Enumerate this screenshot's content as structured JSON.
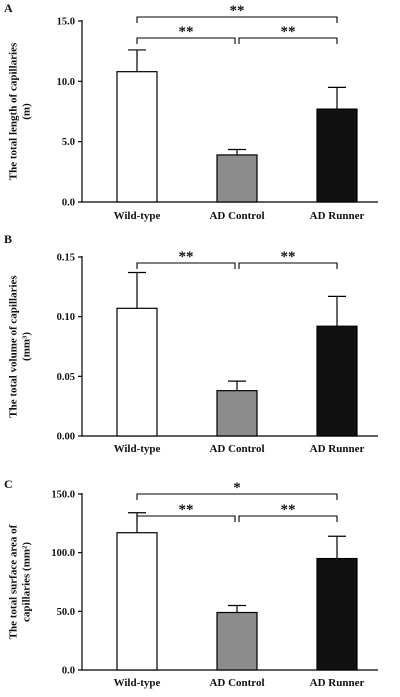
{
  "chart_data": [
    {
      "panel": "A",
      "type": "bar",
      "ylabel": [
        "The total length of capillaries",
        "(m)"
      ],
      "categories": [
        "Wild-type",
        "AD Control",
        "AD Runner"
      ],
      "values": [
        10.8,
        3.9,
        7.7
      ],
      "errors": [
        1.8,
        0.45,
        1.8
      ],
      "bar_colors": [
        "#ffffff",
        "#8c8c8c",
        "#111111"
      ],
      "ylim": [
        0,
        15
      ],
      "yticks": [
        "0.0",
        "5.0",
        "10.0",
        "15.0"
      ],
      "ytick_values": [
        0,
        5,
        10,
        15
      ],
      "significance": [
        {
          "from": 0,
          "to": 1,
          "label": "**"
        },
        {
          "from": 1,
          "to": 2,
          "label": "**"
        },
        {
          "from": 0,
          "to": 2,
          "label": "**"
        }
      ]
    },
    {
      "panel": "B",
      "type": "bar",
      "ylabel": [
        "The total volume of capillaries",
        "(mm³)"
      ],
      "categories": [
        "Wild-type",
        "AD Control",
        "AD Runner"
      ],
      "values": [
        0.107,
        0.038,
        0.092
      ],
      "errors": [
        0.03,
        0.008,
        0.025
      ],
      "bar_colors": [
        "#ffffff",
        "#8c8c8c",
        "#111111"
      ],
      "ylim": [
        0,
        0.15
      ],
      "yticks": [
        "0.00",
        "0.05",
        "0.10",
        "0.15"
      ],
      "ytick_values": [
        0,
        0.05,
        0.1,
        0.15
      ],
      "significance": [
        {
          "from": 0,
          "to": 1,
          "label": "**"
        },
        {
          "from": 1,
          "to": 2,
          "label": "**"
        }
      ]
    },
    {
      "panel": "C",
      "type": "bar",
      "ylabel": [
        "The total surface area of",
        "capillaries (mm²)"
      ],
      "categories": [
        "Wild-type",
        "AD Control",
        "AD Runner"
      ],
      "values": [
        117,
        49,
        95
      ],
      "errors": [
        17,
        6,
        19
      ],
      "bar_colors": [
        "#ffffff",
        "#8c8c8c",
        "#111111"
      ],
      "ylim": [
        0,
        150
      ],
      "yticks": [
        "0.0",
        "50.0",
        "100.0",
        "150.0"
      ],
      "ytick_values": [
        0,
        50,
        100,
        150
      ],
      "significance": [
        {
          "from": 0,
          "to": 1,
          "label": "**"
        },
        {
          "from": 1,
          "to": 2,
          "label": "**"
        },
        {
          "from": 0,
          "to": 2,
          "label": "*"
        }
      ]
    }
  ]
}
